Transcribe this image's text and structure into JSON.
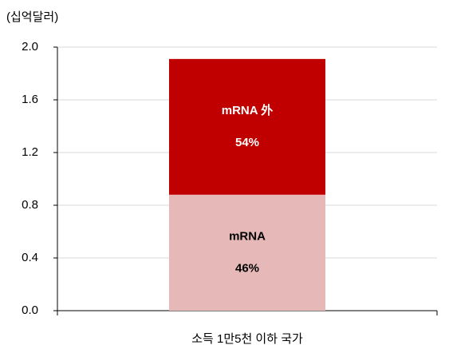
{
  "chart_data": {
    "type": "stacked_bar",
    "y_label": "(십억달러)",
    "categories": [
      "소득 1만5천 이하 국가"
    ],
    "series": [
      {
        "name": "mRNA",
        "color": "#e6b9b8",
        "values": [
          0.88
        ],
        "share_label": "46%"
      },
      {
        "name": "mRNA 外",
        "color": "#c00000",
        "values": [
          1.03
        ],
        "share_label": "54%"
      }
    ],
    "ylim": [
      0,
      2.0
    ],
    "yticks": [
      {
        "value": 0,
        "label": "0.0"
      },
      0.4,
      0.8,
      1.2,
      1.6,
      {
        "value": 2,
        "label": "2.0"
      }
    ],
    "grid": true
  }
}
